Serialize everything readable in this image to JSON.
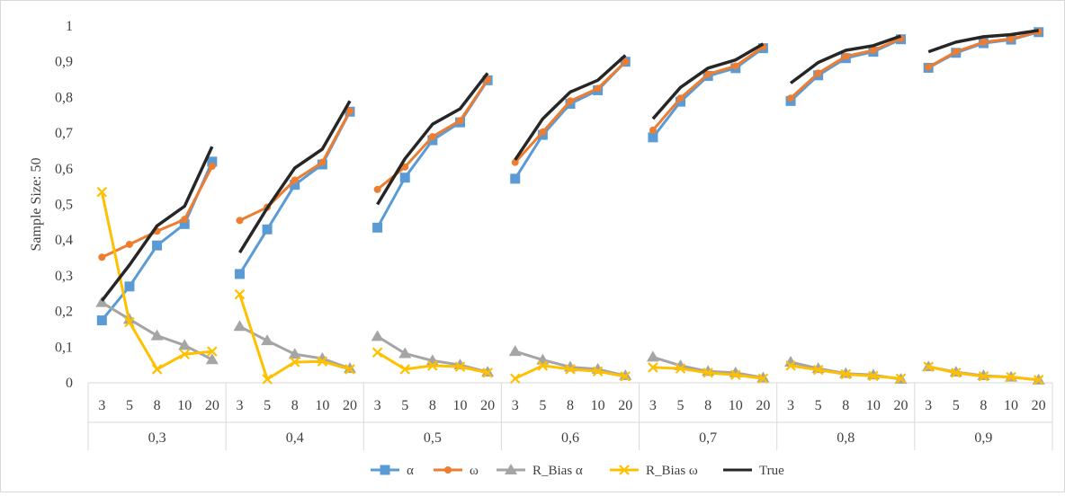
{
  "chart_data": {
    "type": "line",
    "ylabel": "Sample Size: 50",
    "ylim": [
      0,
      1
    ],
    "y_ticks": [
      "0",
      "0,1",
      "0,2",
      "0,3",
      "0,4",
      "0,5",
      "0,6",
      "0,7",
      "0,8",
      "0,9",
      "1"
    ],
    "grid": false,
    "legend_position": "bottom",
    "groups": [
      "0,3",
      "0,4",
      "0,5",
      "0,6",
      "0,7",
      "0,8",
      "0,9"
    ],
    "categories": [
      "3",
      "5",
      "8",
      "10",
      "20"
    ],
    "series": [
      {
        "name": "α",
        "color": "#5b9bd5",
        "marker": "square",
        "values": [
          [
            0.175,
            0.27,
            0.385,
            0.445,
            0.62
          ],
          [
            0.305,
            0.43,
            0.555,
            0.612,
            0.76
          ],
          [
            0.435,
            0.575,
            0.68,
            0.73,
            0.848
          ],
          [
            0.572,
            0.695,
            0.782,
            0.82,
            0.9
          ],
          [
            0.688,
            0.788,
            0.86,
            0.882,
            0.938
          ],
          [
            0.79,
            0.862,
            0.91,
            0.928,
            0.963
          ],
          [
            0.883,
            0.925,
            0.952,
            0.962,
            0.983
          ]
        ]
      },
      {
        "name": "ω",
        "color": "#ed7d31",
        "marker": "circle",
        "values": [
          [
            0.352,
            0.388,
            0.425,
            0.458,
            0.607
          ],
          [
            0.455,
            0.492,
            0.568,
            0.618,
            0.762
          ],
          [
            0.542,
            0.605,
            0.69,
            0.735,
            0.85
          ],
          [
            0.618,
            0.703,
            0.79,
            0.825,
            0.9
          ],
          [
            0.708,
            0.798,
            0.865,
            0.888,
            0.942
          ],
          [
            0.798,
            0.868,
            0.915,
            0.932,
            0.965
          ],
          [
            0.885,
            0.928,
            0.955,
            0.964,
            0.984
          ]
        ]
      },
      {
        "name": "R_Bias α",
        "color": "#a5a5a5",
        "marker": "triangle",
        "values": [
          [
            0.225,
            0.178,
            0.132,
            0.105,
            0.065
          ],
          [
            0.158,
            0.118,
            0.08,
            0.068,
            0.04
          ],
          [
            0.13,
            0.082,
            0.062,
            0.05,
            0.03
          ],
          [
            0.088,
            0.064,
            0.044,
            0.038,
            0.02
          ],
          [
            0.072,
            0.048,
            0.032,
            0.028,
            0.014
          ],
          [
            0.058,
            0.04,
            0.026,
            0.022,
            0.01
          ],
          [
            0.045,
            0.03,
            0.02,
            0.016,
            0.008
          ]
        ]
      },
      {
        "name": "R_Bias ω",
        "color": "#ffc000",
        "marker": "x",
        "values": [
          [
            0.535,
            0.17,
            0.038,
            0.08,
            0.088
          ],
          [
            0.248,
            0.01,
            0.058,
            0.06,
            0.038
          ],
          [
            0.085,
            0.038,
            0.048,
            0.045,
            0.028
          ],
          [
            0.012,
            0.048,
            0.038,
            0.032,
            0.018
          ],
          [
            0.043,
            0.04,
            0.028,
            0.022,
            0.012
          ],
          [
            0.048,
            0.036,
            0.024,
            0.019,
            0.012
          ],
          [
            0.045,
            0.028,
            0.018,
            0.016,
            0.008
          ]
        ]
      },
      {
        "name": "True",
        "color": "#262626",
        "marker": "none",
        "values": [
          [
            0.23,
            0.33,
            0.44,
            0.495,
            0.662
          ],
          [
            0.365,
            0.49,
            0.602,
            0.655,
            0.79
          ],
          [
            0.5,
            0.628,
            0.725,
            0.768,
            0.868
          ],
          [
            0.625,
            0.74,
            0.815,
            0.848,
            0.918
          ],
          [
            0.74,
            0.828,
            0.882,
            0.905,
            0.95
          ],
          [
            0.84,
            0.898,
            0.932,
            0.945,
            0.972
          ],
          [
            0.928,
            0.955,
            0.97,
            0.976,
            0.988
          ]
        ]
      }
    ]
  }
}
